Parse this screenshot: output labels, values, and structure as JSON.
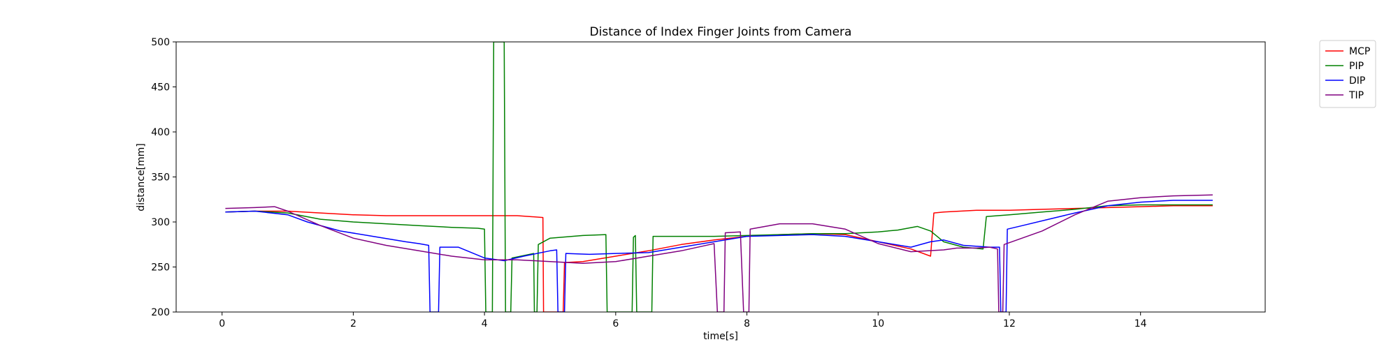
{
  "chart_data": {
    "type": "line",
    "title": "Distance of Index Finger Joints from Camera",
    "xlabel": "time[s]",
    "ylabel": "distance[mm]",
    "xlim": [
      -0.7,
      15.9
    ],
    "ylim": [
      200,
      500
    ],
    "xticks": [
      0,
      2,
      4,
      6,
      8,
      10,
      12,
      14
    ],
    "yticks": [
      200,
      250,
      300,
      350,
      400,
      450,
      500
    ],
    "grid": false,
    "legend_position": "outside-top-right",
    "series": [
      {
        "name": "MCP",
        "color": "#ff0000",
        "points": [
          [
            0.05,
            311
          ],
          [
            0.5,
            312
          ],
          [
            1.0,
            312
          ],
          [
            1.5,
            310
          ],
          [
            2.0,
            308
          ],
          [
            2.5,
            307
          ],
          [
            3.0,
            307
          ],
          [
            3.5,
            307
          ],
          [
            4.0,
            307
          ],
          [
            4.5,
            307
          ],
          [
            4.89,
            305
          ],
          [
            4.9,
            200
          ],
          [
            5.2,
            200
          ],
          [
            5.22,
            255
          ],
          [
            5.5,
            256
          ],
          [
            6.0,
            262
          ],
          [
            6.5,
            268
          ],
          [
            7.0,
            275
          ],
          [
            7.5,
            280
          ],
          [
            8.0,
            284
          ],
          [
            8.5,
            286
          ],
          [
            9.0,
            287
          ],
          [
            9.5,
            286
          ],
          [
            10.0,
            278
          ],
          [
            10.5,
            270
          ],
          [
            10.8,
            262
          ],
          [
            10.85,
            310
          ],
          [
            11.0,
            311
          ],
          [
            11.5,
            313
          ],
          [
            12.0,
            313
          ],
          [
            12.5,
            314
          ],
          [
            13.0,
            315
          ],
          [
            13.5,
            316
          ],
          [
            14.0,
            317
          ],
          [
            14.5,
            318
          ],
          [
            15.1,
            318
          ]
        ]
      },
      {
        "name": "PIP",
        "color": "#008000",
        "points": [
          [
            0.05,
            311
          ],
          [
            0.5,
            312
          ],
          [
            1.0,
            310
          ],
          [
            1.5,
            303
          ],
          [
            2.0,
            300
          ],
          [
            2.5,
            298
          ],
          [
            3.0,
            296
          ],
          [
            3.5,
            294
          ],
          [
            3.9,
            293
          ],
          [
            4.0,
            292
          ],
          [
            4.02,
            200
          ],
          [
            4.12,
            200
          ],
          [
            4.14,
            500
          ],
          [
            4.3,
            500
          ],
          [
            4.32,
            200
          ],
          [
            4.4,
            200
          ],
          [
            4.42,
            260
          ],
          [
            4.75,
            265
          ],
          [
            4.76,
            200
          ],
          [
            4.8,
            200
          ],
          [
            4.82,
            275
          ],
          [
            5.0,
            282
          ],
          [
            5.5,
            285
          ],
          [
            5.85,
            286
          ],
          [
            5.87,
            200
          ],
          [
            6.25,
            200
          ],
          [
            6.27,
            283
          ],
          [
            6.3,
            285
          ],
          [
            6.32,
            200
          ],
          [
            6.55,
            200
          ],
          [
            6.57,
            284
          ],
          [
            7.0,
            284
          ],
          [
            7.5,
            284
          ],
          [
            8.0,
            285
          ],
          [
            8.5,
            286
          ],
          [
            9.0,
            287
          ],
          [
            9.5,
            287
          ],
          [
            10.0,
            289
          ],
          [
            10.3,
            291
          ],
          [
            10.6,
            295
          ],
          [
            10.8,
            290
          ],
          [
            11.0,
            278
          ],
          [
            11.3,
            272
          ],
          [
            11.6,
            270
          ],
          [
            11.65,
            306
          ],
          [
            12.0,
            308
          ],
          [
            12.5,
            311
          ],
          [
            13.0,
            314
          ],
          [
            13.5,
            318
          ],
          [
            14.0,
            319
          ],
          [
            14.5,
            319
          ],
          [
            15.1,
            319
          ]
        ]
      },
      {
        "name": "DIP",
        "color": "#0000ff",
        "points": [
          [
            0.05,
            311
          ],
          [
            0.5,
            312
          ],
          [
            1.0,
            308
          ],
          [
            1.3,
            300
          ],
          [
            1.8,
            290
          ],
          [
            2.3,
            284
          ],
          [
            2.8,
            278
          ],
          [
            3.0,
            276
          ],
          [
            3.15,
            274
          ],
          [
            3.17,
            200
          ],
          [
            3.3,
            200
          ],
          [
            3.32,
            272
          ],
          [
            3.6,
            272
          ],
          [
            4.0,
            260
          ],
          [
            4.3,
            257
          ],
          [
            4.6,
            262
          ],
          [
            5.0,
            268
          ],
          [
            5.1,
            269
          ],
          [
            5.12,
            200
          ],
          [
            5.22,
            200
          ],
          [
            5.24,
            265
          ],
          [
            5.6,
            264
          ],
          [
            6.0,
            265
          ],
          [
            6.5,
            266
          ],
          [
            7.0,
            272
          ],
          [
            7.5,
            278
          ],
          [
            8.0,
            284
          ],
          [
            8.5,
            285
          ],
          [
            9.0,
            286
          ],
          [
            9.5,
            284
          ],
          [
            10.0,
            278
          ],
          [
            10.5,
            272
          ],
          [
            10.8,
            278
          ],
          [
            11.0,
            280
          ],
          [
            11.3,
            274
          ],
          [
            11.7,
            272
          ],
          [
            11.85,
            272
          ],
          [
            11.87,
            200
          ],
          [
            11.95,
            200
          ],
          [
            11.97,
            292
          ],
          [
            12.2,
            296
          ],
          [
            12.6,
            303
          ],
          [
            13.0,
            310
          ],
          [
            13.5,
            318
          ],
          [
            14.0,
            322
          ],
          [
            14.5,
            324
          ],
          [
            15.1,
            324
          ]
        ]
      },
      {
        "name": "TIP",
        "color": "#800080",
        "points": [
          [
            0.05,
            315
          ],
          [
            0.5,
            316
          ],
          [
            0.8,
            317
          ],
          [
            1.0,
            312
          ],
          [
            1.5,
            296
          ],
          [
            2.0,
            282
          ],
          [
            2.5,
            274
          ],
          [
            3.0,
            268
          ],
          [
            3.5,
            262
          ],
          [
            4.0,
            258
          ],
          [
            4.5,
            258
          ],
          [
            5.0,
            256
          ],
          [
            5.5,
            254
          ],
          [
            6.0,
            256
          ],
          [
            6.5,
            262
          ],
          [
            7.0,
            268
          ],
          [
            7.5,
            276
          ],
          [
            7.55,
            200
          ],
          [
            7.65,
            200
          ],
          [
            7.67,
            288
          ],
          [
            7.9,
            289
          ],
          [
            7.95,
            200
          ],
          [
            8.03,
            200
          ],
          [
            8.05,
            292
          ],
          [
            8.5,
            298
          ],
          [
            9.0,
            298
          ],
          [
            9.5,
            292
          ],
          [
            10.0,
            276
          ],
          [
            10.5,
            267
          ],
          [
            11.0,
            269
          ],
          [
            11.2,
            271
          ],
          [
            11.5,
            271
          ],
          [
            11.7,
            272
          ],
          [
            11.82,
            270
          ],
          [
            11.84,
            200
          ],
          [
            11.9,
            200
          ],
          [
            11.92,
            275
          ],
          [
            12.5,
            290
          ],
          [
            13.0,
            308
          ],
          [
            13.5,
            323
          ],
          [
            14.0,
            327
          ],
          [
            14.5,
            329
          ],
          [
            15.1,
            330
          ]
        ]
      }
    ]
  }
}
